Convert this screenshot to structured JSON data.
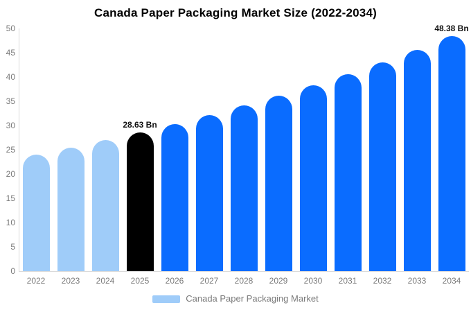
{
  "title": "Canada Paper Packaging Market Size (2022-2034)",
  "chart_data": {
    "type": "bar",
    "title": "Canada Paper Packaging Market Size (2022-2034)",
    "categories": [
      "2022",
      "2023",
      "2024",
      "2025",
      "2026",
      "2027",
      "2028",
      "2029",
      "2030",
      "2031",
      "2032",
      "2033",
      "2034"
    ],
    "values": [
      24.04,
      25.48,
      27.01,
      28.63,
      30.35,
      32.17,
      34.1,
      36.14,
      38.31,
      40.61,
      43.05,
      45.63,
      48.38
    ],
    "bar_colors": [
      "#9fccf9",
      "#9fccf9",
      "#9fccf9",
      "#000000",
      "#0a6cff",
      "#0a6cff",
      "#0a6cff",
      "#0a6cff",
      "#0a6cff",
      "#0a6cff",
      "#0a6cff",
      "#0a6cff",
      "#0a6cff"
    ],
    "annotations": [
      {
        "category": "2025",
        "label": "28.63 Bn"
      },
      {
        "category": "2034",
        "label": "48.38 Bn"
      }
    ],
    "xlabel": "",
    "ylabel": "",
    "ylim": [
      0,
      50
    ],
    "ytick_step": 5,
    "grid": false,
    "legend": {
      "position": "bottom",
      "items": [
        {
          "label": "Canada Paper Packaging Market",
          "color": "#9fccf9"
        }
      ]
    }
  },
  "colors": {
    "background": "#ffffff",
    "axis_line": "#d9d9d9",
    "tick_text": "#7a7a7a",
    "title_text": "#000000",
    "annotation_text": "#111111",
    "series_past": "#9fccf9",
    "series_base_year": "#000000",
    "series_forecast": "#0a6cff"
  }
}
